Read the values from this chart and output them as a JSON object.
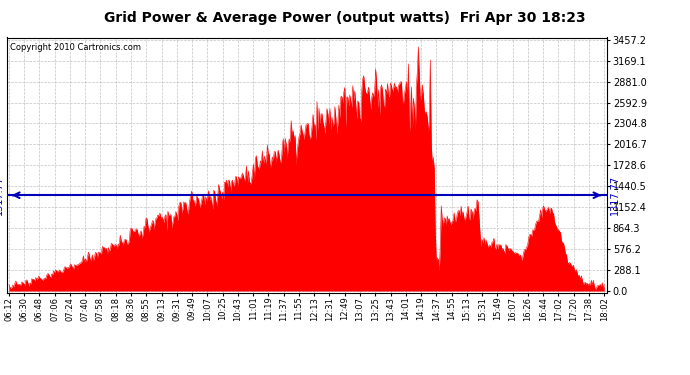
{
  "title": "Grid Power & Average Power (output watts)  Fri Apr 30 18:23",
  "copyright": "Copyright 2010 Cartronics.com",
  "avg_power": 1317.77,
  "y_max": 3457.2,
  "y_min": 0.0,
  "yticks": [
    0.0,
    288.1,
    576.2,
    864.3,
    1152.4,
    1440.5,
    1728.6,
    2016.7,
    2304.8,
    2592.9,
    2881.0,
    3169.1,
    3457.2
  ],
  "fill_color": "#FF0000",
  "line_color": "#FF0000",
  "avg_line_color": "#0000BB",
  "background_color": "#FFFFFF",
  "grid_color": "#AAAAAA",
  "title_fontsize": 11,
  "x_labels": [
    "06:12",
    "06:30",
    "06:48",
    "07:06",
    "07:24",
    "07:40",
    "07:58",
    "08:18",
    "08:36",
    "08:55",
    "09:13",
    "09:31",
    "09:49",
    "10:07",
    "10:25",
    "10:43",
    "11:01",
    "11:19",
    "11:37",
    "11:55",
    "12:13",
    "12:31",
    "12:49",
    "13:07",
    "13:25",
    "13:43",
    "14:01",
    "14:19",
    "14:37",
    "14:55",
    "15:13",
    "15:31",
    "15:49",
    "16:07",
    "16:26",
    "16:44",
    "17:02",
    "17:20",
    "17:38",
    "18:02"
  ]
}
